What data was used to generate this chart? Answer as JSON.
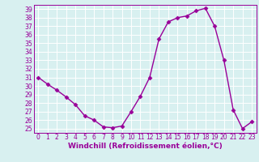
{
  "x": [
    0,
    1,
    2,
    3,
    4,
    5,
    6,
    7,
    8,
    9,
    10,
    11,
    12,
    13,
    14,
    15,
    16,
    17,
    18,
    19,
    20,
    21,
    22,
    23
  ],
  "y": [
    31.0,
    30.2,
    29.5,
    28.7,
    27.8,
    26.5,
    26.0,
    25.2,
    25.1,
    25.3,
    27.0,
    28.8,
    31.0,
    35.5,
    37.5,
    38.0,
    38.2,
    38.8,
    39.1,
    37.0,
    33.0,
    27.2,
    25.0,
    25.8
  ],
  "line_color": "#990099",
  "marker": "D",
  "markersize": 2.5,
  "linewidth": 1.0,
  "xlabel": "Windchill (Refroidissement éolien,°C)",
  "ylabel": "",
  "xlim": [
    -0.5,
    23.5
  ],
  "ylim": [
    24.5,
    39.5
  ],
  "yticks": [
    25,
    26,
    27,
    28,
    29,
    30,
    31,
    32,
    33,
    34,
    35,
    36,
    37,
    38,
    39
  ],
  "xticks": [
    0,
    1,
    2,
    3,
    4,
    5,
    6,
    7,
    8,
    9,
    10,
    11,
    12,
    13,
    14,
    15,
    16,
    17,
    18,
    19,
    20,
    21,
    22,
    23
  ],
  "bg_color": "#d8f0f0",
  "grid_color": "#ffffff",
  "line_purple": "#990099",
  "xlabel_fontsize": 6.5,
  "tick_fontsize": 5.5
}
